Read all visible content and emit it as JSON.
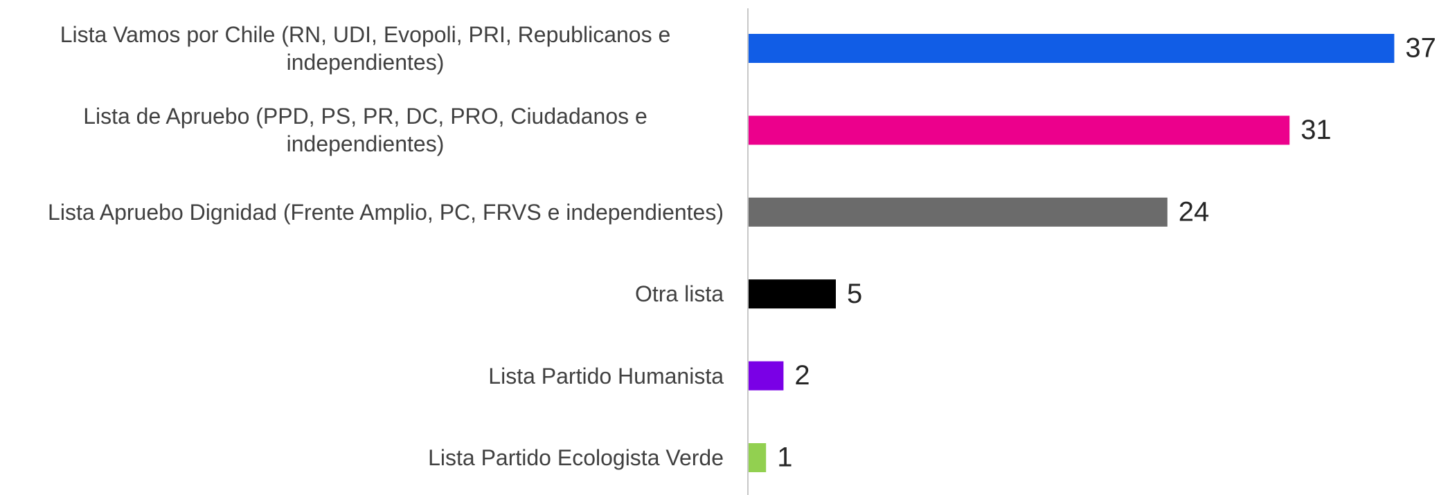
{
  "chart_data": {
    "type": "hbar",
    "categories": [
      "Lista Vamos por Chile (RN, UDI, Evopoli, PRI, Republicanos e independientes)",
      "Lista de Apruebo (PPD, PS, PR, DC, PRO, Ciudadanos e independientes)",
      "Lista Apruebo Dignidad (Frente Amplio, PC, FRVS e independientes)",
      "Otra lista",
      "Lista Partido Humanista",
      "Lista Partido Ecologista Verde"
    ],
    "values": [
      37,
      31,
      24,
      5,
      2,
      1
    ],
    "colors": [
      "#115de6",
      "#ec008c",
      "#6b6b6b",
      "#000000",
      "#7a00e6",
      "#92d050"
    ]
  }
}
